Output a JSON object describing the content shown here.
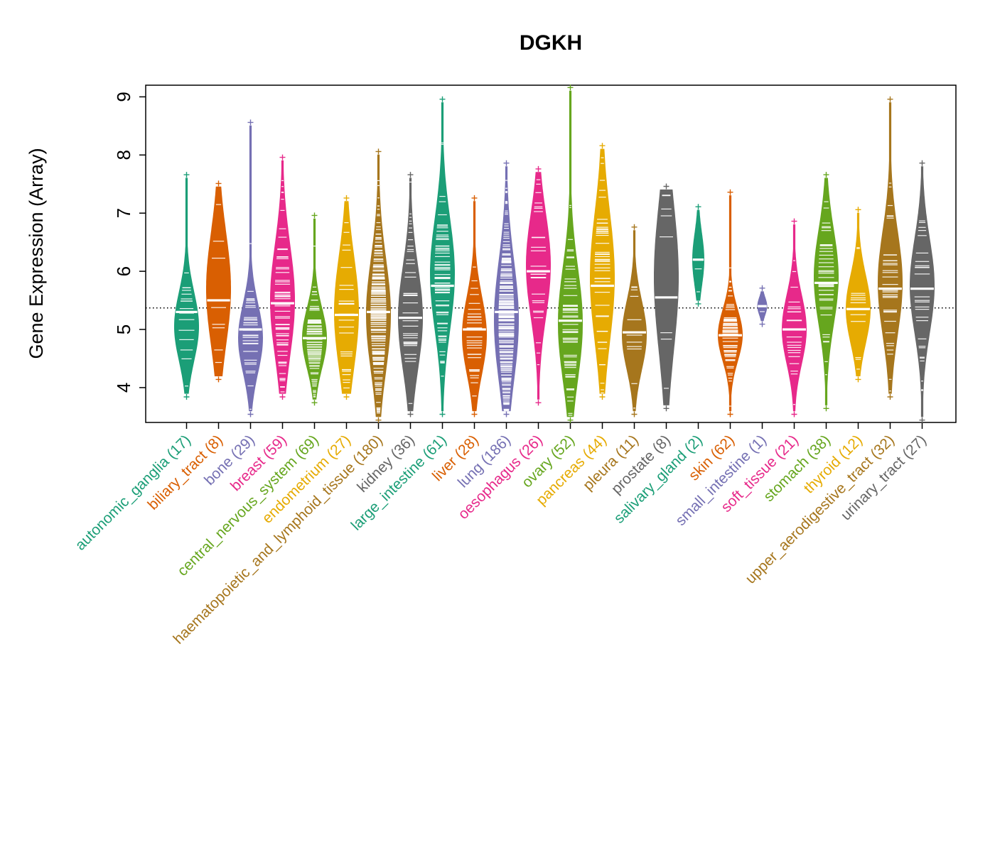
{
  "chart_data": {
    "type": "violin",
    "title": "DGKH",
    "xlabel": "",
    "ylabel": "Gene Expression (Array)",
    "ylim": [
      3.4,
      9.2
    ],
    "yticks": [
      4,
      5,
      6,
      7,
      8,
      9
    ],
    "reference_line": 5.37,
    "grid": false,
    "legend": "none",
    "categories": [
      {
        "label": "autonomic_ganglia",
        "n": 17,
        "color": "#1B9E77",
        "min": 3.9,
        "q1": 4.7,
        "median": 5.3,
        "q3": 5.5,
        "max": 7.6,
        "mode": 5.05
      },
      {
        "label": "biliary_tract",
        "n": 8,
        "color": "#D95F02",
        "min": 4.2,
        "q1": 5.1,
        "median": 5.5,
        "q3": 6.4,
        "max": 7.45,
        "mode": 5.7
      },
      {
        "label": "bone",
        "n": 29,
        "color": "#7570B3",
        "min": 3.6,
        "q1": 4.5,
        "median": 5.0,
        "q3": 5.3,
        "max": 8.5,
        "mode": 4.85
      },
      {
        "label": "breast",
        "n": 59,
        "color": "#E7298A",
        "min": 3.9,
        "q1": 4.9,
        "median": 5.45,
        "q3": 6.2,
        "max": 7.9,
        "mode": 5.5
      },
      {
        "label": "central_nervous_system",
        "n": 69,
        "color": "#66A61E",
        "min": 3.8,
        "q1": 4.5,
        "median": 4.85,
        "q3": 5.2,
        "max": 6.9,
        "mode": 4.85
      },
      {
        "label": "endometrium",
        "n": 27,
        "color": "#E6AB02",
        "min": 3.9,
        "q1": 4.7,
        "median": 5.25,
        "q3": 6.0,
        "max": 7.2,
        "mode": 5.3
      },
      {
        "label": "haematopoietic_and_lymphoid_tissue",
        "n": 180,
        "color": "#A6761D",
        "min": 3.5,
        "q1": 4.6,
        "median": 5.3,
        "q3": 5.9,
        "max": 8.0,
        "mode": 5.25
      },
      {
        "label": "kidney",
        "n": 36,
        "color": "#666666",
        "min": 3.6,
        "q1": 4.7,
        "median": 5.2,
        "q3": 5.9,
        "max": 7.6,
        "mode": 5.2
      },
      {
        "label": "large_intestine",
        "n": 61,
        "color": "#1B9E77",
        "min": 3.6,
        "q1": 5.2,
        "median": 5.75,
        "q3": 6.5,
        "max": 8.9,
        "mode": 5.95
      },
      {
        "label": "liver",
        "n": 28,
        "color": "#D95F02",
        "min": 3.6,
        "q1": 4.5,
        "median": 5.0,
        "q3": 5.4,
        "max": 7.2,
        "mode": 4.9
      },
      {
        "label": "lung",
        "n": 186,
        "color": "#7570B3",
        "min": 3.6,
        "q1": 4.6,
        "median": 5.3,
        "q3": 6.0,
        "max": 7.8,
        "mode": 5.15
      },
      {
        "label": "oesophagus",
        "n": 26,
        "color": "#E7298A",
        "min": 3.8,
        "q1": 5.4,
        "median": 6.0,
        "q3": 6.6,
        "max": 7.7,
        "mode": 6.1
      },
      {
        "label": "ovary",
        "n": 52,
        "color": "#66A61E",
        "min": 3.5,
        "q1": 4.7,
        "median": 5.15,
        "q3": 6.0,
        "max": 9.1,
        "mode": 5.1
      },
      {
        "label": "pancreas",
        "n": 44,
        "color": "#E6AB02",
        "min": 3.9,
        "q1": 5.0,
        "median": 5.75,
        "q3": 6.5,
        "max": 8.1,
        "mode": 5.9
      },
      {
        "label": "pleura",
        "n": 11,
        "color": "#A6761D",
        "min": 3.6,
        "q1": 4.5,
        "median": 4.95,
        "q3": 5.3,
        "max": 6.7,
        "mode": 4.9
      },
      {
        "label": "prostate",
        "n": 8,
        "color": "#666666",
        "min": 3.7,
        "q1": 4.7,
        "median": 5.55,
        "q3": 6.4,
        "max": 7.4,
        "mode": 5.9
      },
      {
        "label": "salivary_gland",
        "n": 2,
        "color": "#1B9E77",
        "min": 5.5,
        "q1": 5.9,
        "median": 6.2,
        "q3": 6.5,
        "max": 7.05,
        "mode": 6.2
      },
      {
        "label": "skin",
        "n": 62,
        "color": "#D95F02",
        "min": 3.6,
        "q1": 4.6,
        "median": 4.9,
        "q3": 5.2,
        "max": 7.3,
        "mode": 4.9
      },
      {
        "label": "small_intestine",
        "n": 1,
        "color": "#7570B3",
        "min": 5.15,
        "q1": 5.3,
        "median": 5.4,
        "q3": 5.5,
        "max": 5.65,
        "mode": 5.4
      },
      {
        "label": "soft_tissue",
        "n": 21,
        "color": "#E7298A",
        "min": 3.6,
        "q1": 4.6,
        "median": 5.0,
        "q3": 5.4,
        "max": 6.8,
        "mode": 5.0
      },
      {
        "label": "stomach",
        "n": 38,
        "color": "#66A61E",
        "min": 3.7,
        "q1": 5.2,
        "median": 5.8,
        "q3": 6.3,
        "max": 7.6,
        "mode": 5.9
      },
      {
        "label": "thyroid",
        "n": 12,
        "color": "#E6AB02",
        "min": 4.2,
        "q1": 5.0,
        "median": 5.35,
        "q3": 5.8,
        "max": 7.0,
        "mode": 5.35
      },
      {
        "label": "upper_aerodigestive_tract",
        "n": 32,
        "color": "#A6761D",
        "min": 3.9,
        "q1": 5.2,
        "median": 5.7,
        "q3": 6.4,
        "max": 8.9,
        "mode": 5.8
      },
      {
        "label": "urinary_tract",
        "n": 27,
        "color": "#666666",
        "min": 3.5,
        "q1": 5.2,
        "median": 5.7,
        "q3": 6.3,
        "max": 7.8,
        "mode": 5.75
      }
    ]
  }
}
